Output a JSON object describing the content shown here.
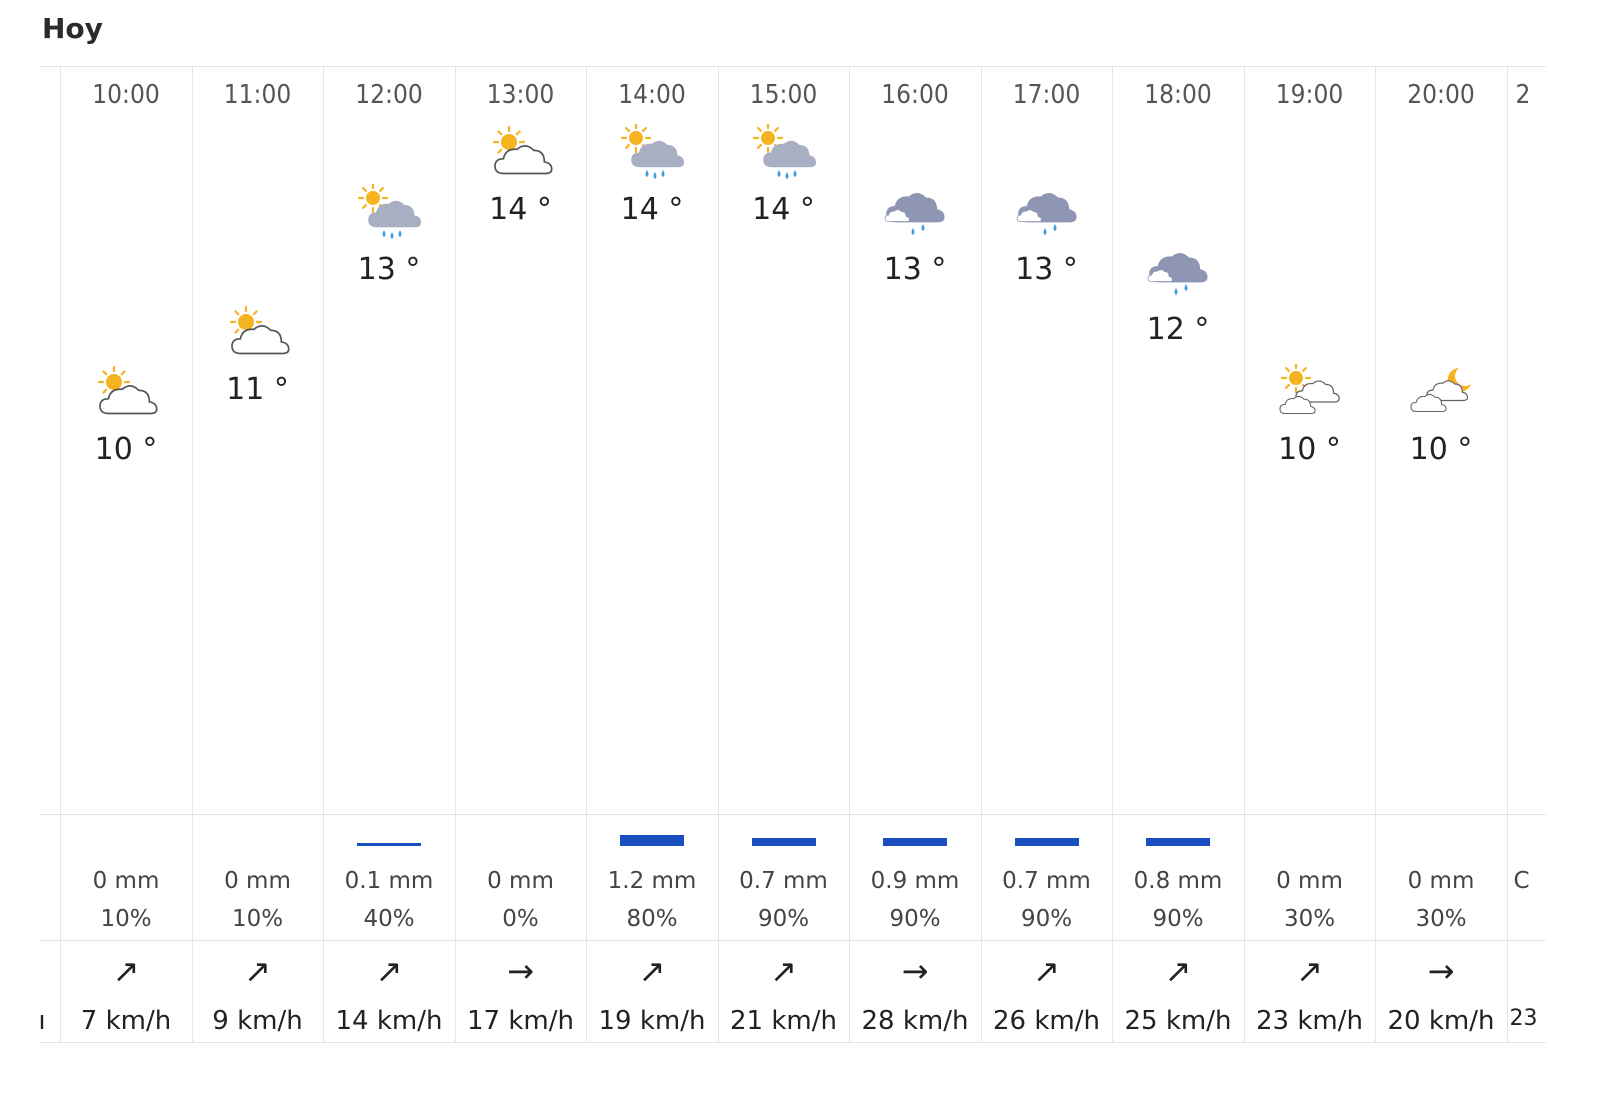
{
  "title": "Hoy",
  "left_fragment": {
    "wind": "ı"
  },
  "right_fragment": {
    "time": "2",
    "precip": "C",
    "wind": "23"
  },
  "hours": [
    {
      "time": "10:00",
      "temp": "10 °",
      "icon": "partly-cloudy-icon",
      "precip": "0 mm",
      "prob": "10%",
      "arrow": "↗",
      "wind": "7 km/h",
      "rain_level": 0
    },
    {
      "time": "11:00",
      "temp": "11 °",
      "icon": "partly-cloudy-icon",
      "precip": "0 mm",
      "prob": "10%",
      "arrow": "↗",
      "wind": "9 km/h",
      "rain_level": 0
    },
    {
      "time": "12:00",
      "temp": "13 °",
      "icon": "sun-cloud-rain-icon",
      "precip": "0.1 mm",
      "prob": "40%",
      "arrow": "↗",
      "wind": "14 km/h",
      "rain_level": 0.1
    },
    {
      "time": "13:00",
      "temp": "14 °",
      "icon": "partly-cloudy-icon",
      "precip": "0 mm",
      "prob": "0%",
      "arrow": "→",
      "wind": "17 km/h",
      "rain_level": 0
    },
    {
      "time": "14:00",
      "temp": "14 °",
      "icon": "sun-cloud-rain-icon",
      "precip": "1.2 mm",
      "prob": "80%",
      "arrow": "↗",
      "wind": "19 km/h",
      "rain_level": 1.2
    },
    {
      "time": "15:00",
      "temp": "14 °",
      "icon": "sun-cloud-rain-icon",
      "precip": "0.7 mm",
      "prob": "90%",
      "arrow": "↗",
      "wind": "21 km/h",
      "rain_level": 0.7
    },
    {
      "time": "16:00",
      "temp": "13 °",
      "icon": "cloud-rain-icon",
      "precip": "0.9 mm",
      "prob": "90%",
      "arrow": "→",
      "wind": "28 km/h",
      "rain_level": 0.9
    },
    {
      "time": "17:00",
      "temp": "13 °",
      "icon": "cloud-rain-icon",
      "precip": "0.7 mm",
      "prob": "90%",
      "arrow": "↗",
      "wind": "26 km/h",
      "rain_level": 0.7
    },
    {
      "time": "18:00",
      "temp": "12 °",
      "icon": "cloud-rain-icon",
      "precip": "0.8 mm",
      "prob": "90%",
      "arrow": "↗",
      "wind": "25 km/h",
      "rain_level": 0.8
    },
    {
      "time": "19:00",
      "temp": "10 °",
      "icon": "sun-clouds-icon",
      "precip": "0 mm",
      "prob": "30%",
      "arrow": "↗",
      "wind": "23 km/h",
      "rain_level": 0
    },
    {
      "time": "20:00",
      "temp": "10 °",
      "icon": "moon-clouds-icon",
      "precip": "0 mm",
      "prob": "30%",
      "arrow": "→",
      "wind": "20 km/h",
      "rain_level": 0
    }
  ],
  "colors": {
    "sun": "#f5b31f",
    "rain_cloud": "#a9afc2",
    "dark_cloud": "#8e96b3",
    "drop": "#3ca0e0",
    "bar": "#1a4fbf",
    "moon": "#f5b31f"
  }
}
